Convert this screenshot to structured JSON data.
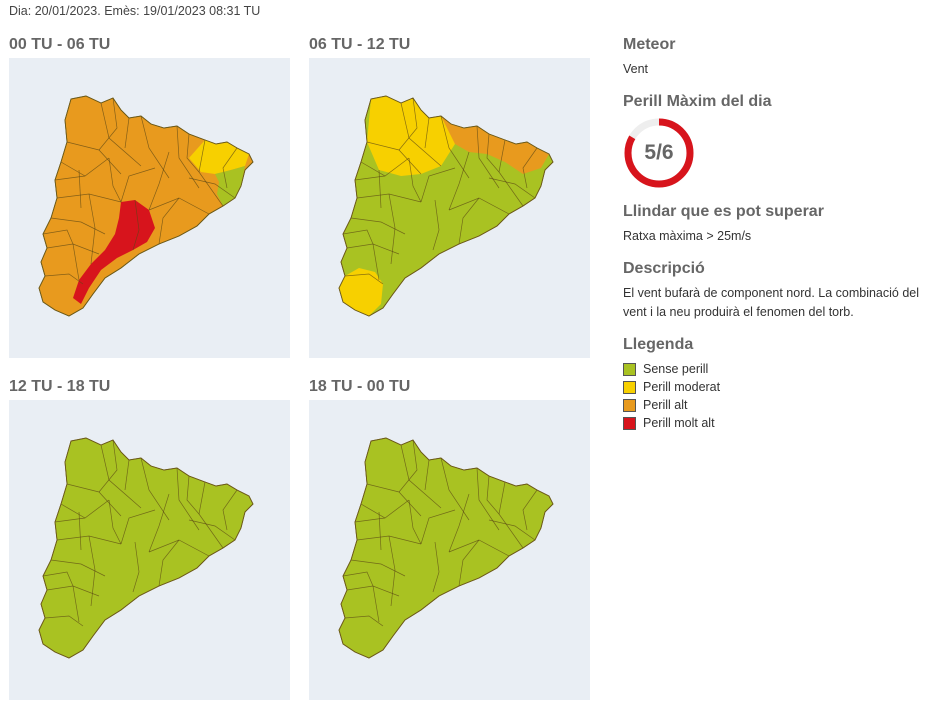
{
  "header": {
    "date_line": "Dia: 20/01/2023. Emès: 19/01/2023 08:31 TU"
  },
  "colors": {
    "sense_perill": "#a9c222",
    "perill_moderat": "#f7d000",
    "perill_alt": "#e89a1e",
    "perill_molt_alt": "#d7141c",
    "gauge_track": "#eeeeee",
    "gauge_fill": "#d7141c"
  },
  "maps": [
    {
      "title": "00 TU - 06 TU",
      "dominant": "perill_alt",
      "zones": [
        "perill_moderat",
        "sense_perill",
        "perill_molt_alt"
      ]
    },
    {
      "title": "06 TU - 12 TU",
      "dominant": "sense_perill",
      "zones": [
        "perill_moderat",
        "perill_alt",
        "perill_moderat"
      ]
    },
    {
      "title": "12 TU - 18 TU",
      "dominant": "sense_perill",
      "zones": []
    },
    {
      "title": "18 TU - 00 TU",
      "dominant": "sense_perill",
      "zones": []
    }
  ],
  "side": {
    "meteor_heading": "Meteor",
    "meteor_value": "Vent",
    "perill_heading": "Perill Màxim del dia",
    "perill_value": "5/6",
    "perill_fraction": 0.8333,
    "llindar_heading": "Llindar que es pot superar",
    "llindar_value": "Ratxa màxima > 25m/s",
    "descripcio_heading": "Descripció",
    "descripcio_value": "El vent bufarà de component nord. La combinació del vent i la neu produirà el fenomen del torb.",
    "llegenda_heading": "Llegenda",
    "legend": [
      {
        "label": "Sense perill",
        "color": "#a9c222"
      },
      {
        "label": "Perill moderat",
        "color": "#f7d000"
      },
      {
        "label": "Perill alt",
        "color": "#e89a1e"
      },
      {
        "label": "Perill molt alt",
        "color": "#d7141c"
      }
    ]
  }
}
